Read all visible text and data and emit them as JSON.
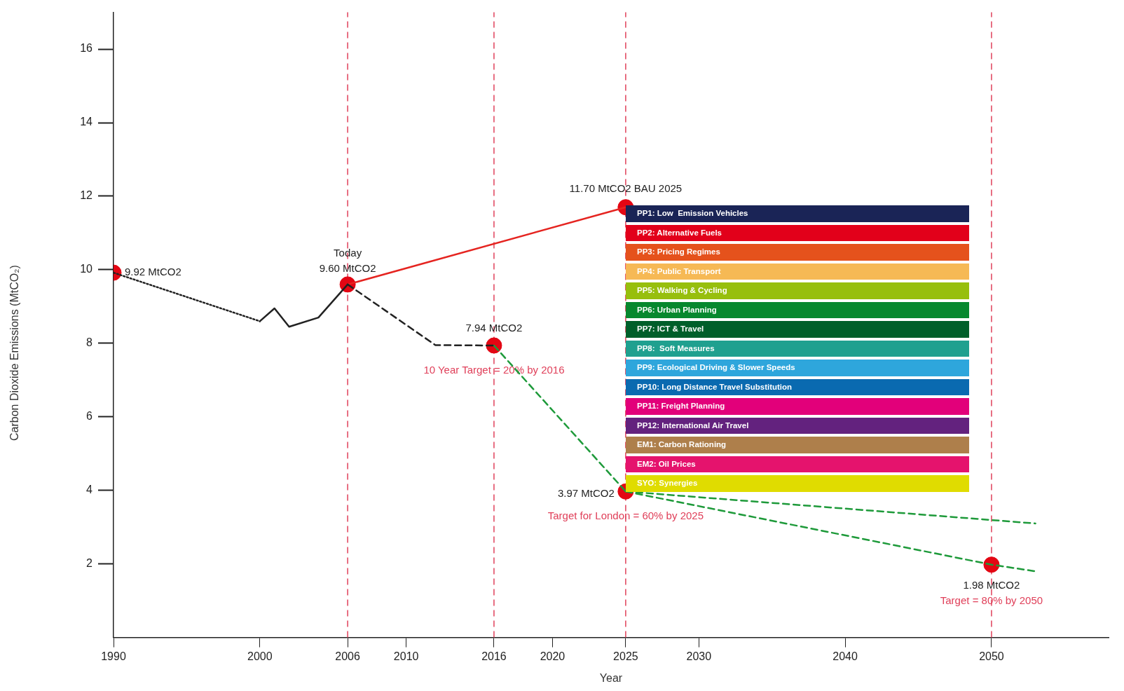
{
  "chart_data": [
    {
      "type": "line",
      "xlabel": "Year",
      "ylabel": "Carbon Dioxide Emissions (MtCO₂)",
      "xlim": [
        1990,
        2058
      ],
      "ylim": [
        0,
        17
      ],
      "xticks": [
        1990,
        2000,
        2006,
        2010,
        2016,
        2020,
        2025,
        2030,
        2040,
        2050
      ],
      "yticks": [
        2,
        4,
        6,
        8,
        10,
        12,
        14,
        16
      ],
      "grid": false,
      "legend": false,
      "series": [
        {
          "type": "line",
          "color": "#222222",
          "line_style": "dotted",
          "marker": "none",
          "x": [
            1990,
            2000
          ],
          "values": [
            9.92,
            8.6
          ]
        },
        {
          "type": "line",
          "color": "#222222",
          "line_style": "solid",
          "marker": "none",
          "x": [
            2000,
            2001,
            2002,
            2004,
            2006
          ],
          "values": [
            8.6,
            8.95,
            8.45,
            8.7,
            9.6
          ]
        },
        {
          "type": "line",
          "color": "#222222",
          "line_style": "dashed",
          "marker": "none",
          "x": [
            2006,
            2012,
            2016
          ],
          "values": [
            9.6,
            7.95,
            7.94
          ]
        },
        {
          "type": "line",
          "color": "#e52420",
          "line_style": "solid",
          "marker": "none",
          "x": [
            2006,
            2025
          ],
          "values": [
            9.6,
            11.7
          ]
        },
        {
          "type": "line",
          "color": "#1e9a3a",
          "line_style": "dashed",
          "marker": "none",
          "x": [
            2016,
            2025
          ],
          "values": [
            7.94,
            3.97
          ]
        },
        {
          "type": "line",
          "color": "#1e9a3a",
          "line_style": "dashed",
          "marker": "none",
          "x": [
            2025,
            2053
          ],
          "values": [
            3.97,
            3.1
          ]
        },
        {
          "type": "line",
          "color": "#1e9a3a",
          "line_style": "dashed",
          "marker": "none",
          "x": [
            2025,
            2050,
            2053
          ],
          "values": [
            3.97,
            1.98,
            1.8
          ]
        },
        {
          "type": "scatter",
          "color": "#e30613",
          "marker": "circle",
          "x": [
            1990,
            2006,
            2016,
            2025,
            2025,
            2050
          ],
          "values": [
            9.92,
            9.6,
            7.94,
            11.7,
            3.97,
            1.98
          ],
          "value_labels": [
            "9.92 MtCO2",
            "9.60 MtCO2",
            "7.94 MtCO2",
            "11.70 MtCO2 BAU 2025",
            "3.97 MtCO2",
            "1.98 MtCO2"
          ]
        }
      ],
      "ref_lines": [
        {
          "axis": "x",
          "value": 2006,
          "color": "#e0405a",
          "line_style": "dashed"
        },
        {
          "axis": "x",
          "value": 2016,
          "label": "10 Year Target = 20% by 2016",
          "color": "#e0405a",
          "line_style": "dashed"
        },
        {
          "axis": "x",
          "value": 2025,
          "label": "Target for London = 60% by 2025",
          "color": "#e0405a",
          "line_style": "dashed"
        },
        {
          "axis": "x",
          "value": 2050,
          "label": "Target = 80% by 2050",
          "color": "#e0405a",
          "line_style": "dashed"
        }
      ],
      "annotations": [
        {
          "text": "Today",
          "x": 2006,
          "y": 9.6
        }
      ]
    },
    {
      "type": "other",
      "categories": [
        "PP1: Low  Emission Vehicles",
        "PP2: Alternative Fuels",
        "PP3: Pricing Regimes",
        "PP4: Public Transport",
        "PP5: Walking & Cycling",
        "PP6: Urban Planning",
        "PP7: ICT & Travel",
        "PP8:  Soft Measures",
        "PP9: Ecological Driving & Slower Speeds",
        "PP10: Long Distance Travel Substitution",
        "PP11: Freight Planning",
        "PP12: International Air Travel",
        "EM1: Carbon Rationing",
        "EM2: Oil Prices",
        "SYO: Synergies"
      ],
      "colors": [
        "#1a2456",
        "#e2001a",
        "#e5521c",
        "#f6b955",
        "#97bf0d",
        "#07882e",
        "#005f2a",
        "#1fa08f",
        "#2ea6dc",
        "#0a6ab0",
        "#e2007a",
        "#63227e",
        "#ae7f4b",
        "#e5136d",
        "#e0dc00"
      ]
    }
  ]
}
